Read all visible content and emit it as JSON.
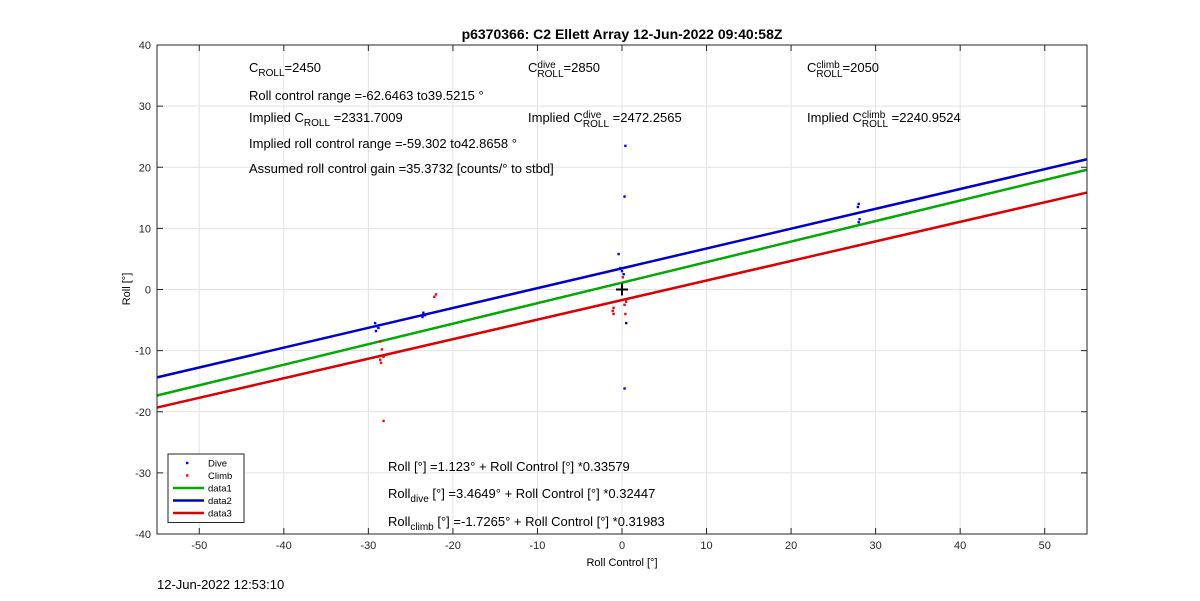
{
  "chart_data": {
    "type": "scatter",
    "title": "p6370366: C2 Ellett Array 12-Jun-2022 09:40:58Z",
    "xlabel": "Roll Control [°]",
    "ylabel": "Roll [°]",
    "xlim": [
      -55,
      55
    ],
    "ylim": [
      -40,
      40
    ],
    "xticks": [
      -50,
      -40,
      -30,
      -20,
      -10,
      0,
      10,
      20,
      30,
      40,
      50
    ],
    "yticks": [
      -40,
      -30,
      -20,
      -10,
      0,
      10,
      20,
      30,
      40
    ],
    "xticklabels": [
      "-50",
      "-40",
      "-30",
      "-20",
      "-10",
      "0",
      "10",
      "20",
      "30",
      "40",
      "50"
    ],
    "yticklabels": [
      "-40",
      "-30",
      "-20",
      "-10",
      "0",
      "10",
      "20",
      "30",
      "40"
    ],
    "grid": true,
    "legend": "bottom-left",
    "series": [
      {
        "name": "Dive",
        "kind": "points",
        "color": "#0000ff",
        "points": [
          [
            -29.2,
            -5.5
          ],
          [
            -29.0,
            -6.0
          ],
          [
            -28.8,
            -6.3
          ],
          [
            -29.1,
            -6.8
          ],
          [
            -23.5,
            -3.8
          ],
          [
            -23.3,
            -4.2
          ],
          [
            -23.6,
            -4.5
          ],
          [
            -0.4,
            5.8
          ],
          [
            -0.2,
            3.5
          ],
          [
            0.0,
            3.0
          ],
          [
            0.2,
            2.5
          ],
          [
            0.4,
            23.5
          ],
          [
            0.3,
            15.2
          ],
          [
            0.5,
            -5.5
          ],
          [
            0.3,
            -16.2
          ],
          [
            28.0,
            14.0
          ],
          [
            27.9,
            13.5
          ],
          [
            28.1,
            11.5
          ],
          [
            28.0,
            11.0
          ]
        ]
      },
      {
        "name": "Climb",
        "kind": "points",
        "color": "#ff0000",
        "points": [
          [
            -28.6,
            -8.5
          ],
          [
            -28.4,
            -9.8
          ],
          [
            -28.2,
            -11.0
          ],
          [
            -28.6,
            -11.5
          ],
          [
            -28.5,
            -12.0
          ],
          [
            -28.2,
            -21.5
          ],
          [
            -22.0,
            -0.8
          ],
          [
            -22.2,
            -1.2
          ],
          [
            -1.0,
            -3.0
          ],
          [
            -1.1,
            -3.5
          ],
          [
            -1.0,
            -4.0
          ],
          [
            0.5,
            -2.0
          ],
          [
            0.3,
            -2.5
          ],
          [
            0.4,
            -4.0
          ],
          [
            0.1,
            2.0
          ]
        ]
      },
      {
        "name": "data1",
        "kind": "line",
        "color": "#00aa00",
        "intercept": 1.123,
        "slope": 0.33579
      },
      {
        "name": "data2",
        "kind": "line",
        "color": "#0000cc",
        "intercept": 3.4649,
        "slope": 0.32447
      },
      {
        "name": "data3",
        "kind": "line",
        "color": "#dd0000",
        "intercept": -1.7265,
        "slope": 0.31983
      }
    ],
    "marker": {
      "symbol": "+",
      "x": 0,
      "y": 0
    }
  },
  "annotations": {
    "c_roll_base": "C",
    "c_roll_sub": "ROLL",
    "c_roll_val": "=2450",
    "roll_range": "Roll control range =-62.6463 to39.5215 °",
    "implied_base": "Implied C",
    "implied_sub": "ROLL",
    "implied_val": "=2331.7009",
    "implied_range": "Implied roll control range =-59.302 to42.8658 °",
    "gain": "Assumed roll control gain =35.3732 [counts/° to stbd]",
    "dive_base": "C",
    "dive_sup": "dive",
    "dive_sub": "ROLL",
    "dive_val": "=2850",
    "implied_dive_base": "Implied C",
    "implied_dive_sup": "dive",
    "implied_dive_sub": "ROLL",
    "implied_dive_val": "=2472.2565",
    "climb_base": "C",
    "climb_sup": "climb",
    "climb_sub": "ROLL",
    "climb_val": "=2050",
    "implied_climb_base": "Implied C",
    "implied_climb_sup": "climb",
    "implied_climb_sub": "ROLL",
    "implied_climb_val": "=2240.9524",
    "fit_all": "Roll [°] =1.123° + Roll Control [°] *0.33579",
    "fit_dive_base": "Roll",
    "fit_dive_sub": "dive",
    "fit_dive_rest": " [°] =3.4649° + Roll Control [°] *0.32447",
    "fit_climb_base": "Roll",
    "fit_climb_sub": "climb",
    "fit_climb_rest": " [°] =-1.7265° + Roll Control [°] *0.31983"
  },
  "footer_timestamp": "12-Jun-2022 12:53:10"
}
